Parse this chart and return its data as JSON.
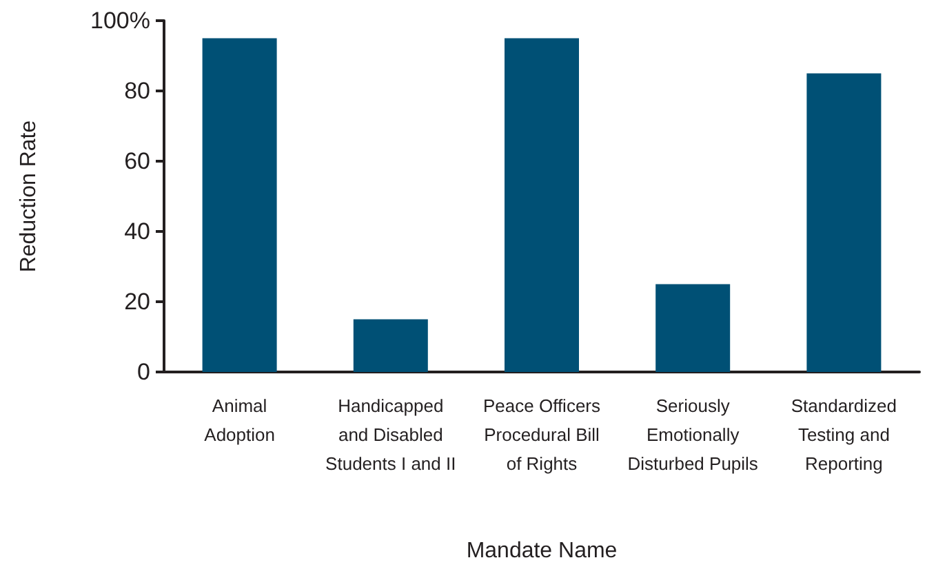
{
  "chart_data": {
    "type": "bar",
    "xlabel": "Mandate Name",
    "ylabel": "Reduction Rate",
    "categories": [
      "Animal\nAdoption",
      "Handicapped\nand Disabled\nStudents I and II",
      "Peace Officers\nProcedural Bill\nof Rights",
      "Seriously\nEmotionally\nDisturbed Pupils",
      "Standardized\nTesting and\nReporting"
    ],
    "values": [
      95,
      15,
      95,
      25,
      85
    ],
    "color": "#005075",
    "ylim": [
      0,
      100
    ],
    "yticks": [
      0,
      20,
      40,
      60,
      80,
      {
        "value": 100,
        "label": "100%"
      }
    ]
  }
}
